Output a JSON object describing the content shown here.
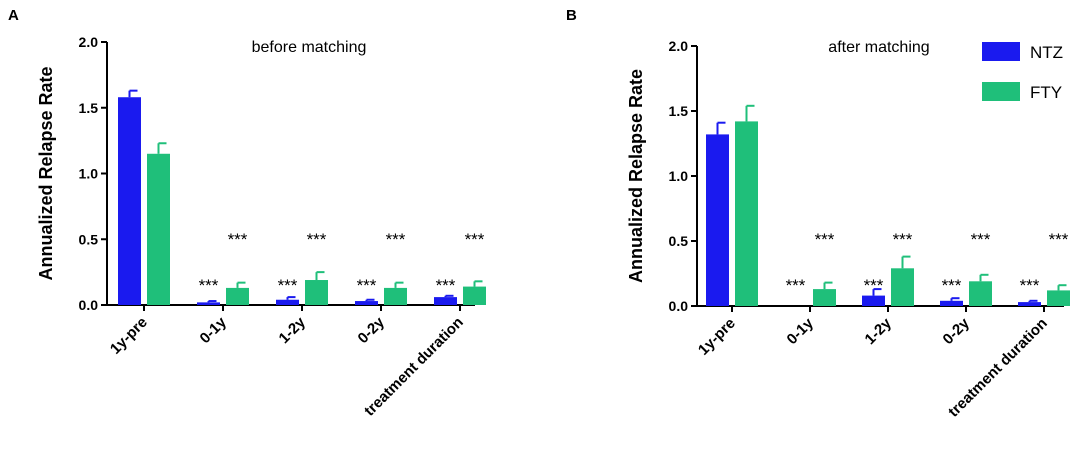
{
  "colors": {
    "ntz": "#1a1aef",
    "fty": "#1fbf7a",
    "axis": "#000000"
  },
  "legend": [
    {
      "name": "NTZ",
      "color": "#1a1aef"
    },
    {
      "name": "FTY",
      "color": "#1fbf7a"
    }
  ],
  "chart_data": [
    {
      "panel": "A",
      "type": "bar",
      "title": "before matching",
      "ylabel": "Annualized Relapse Rate",
      "xlabel": "",
      "ylim": [
        0,
        2.0
      ],
      "yticks": [
        "0.0",
        "0.5",
        "1.0",
        "1.5",
        "2.0"
      ],
      "categories": [
        "1y-pre",
        "0-1y",
        "1-2y",
        "0-2y",
        "treatment duration"
      ],
      "series": [
        {
          "name": "NTZ",
          "values": [
            1.58,
            0.02,
            0.04,
            0.03,
            0.06
          ],
          "errors": [
            0.05,
            0.01,
            0.02,
            0.01,
            0.01
          ]
        },
        {
          "name": "FTY",
          "values": [
            1.15,
            0.13,
            0.19,
            0.13,
            0.14
          ],
          "errors": [
            0.08,
            0.04,
            0.06,
            0.04,
            0.04
          ]
        }
      ],
      "annotations": {
        "NTZ": [
          "",
          "***",
          "***",
          "***",
          "***"
        ],
        "FTY": [
          "",
          "***",
          "***",
          "***",
          "***"
        ]
      }
    },
    {
      "panel": "B",
      "type": "bar",
      "title": "after matching",
      "ylabel": "Annualized Relapse Rate",
      "xlabel": "",
      "ylim": [
        0,
        2.0
      ],
      "yticks": [
        "0.0",
        "0.5",
        "1.0",
        "1.5",
        "2.0"
      ],
      "categories": [
        "1y-pre",
        "0-1y",
        "1-2y",
        "0-2y",
        "treatment duration"
      ],
      "series": [
        {
          "name": "NTZ",
          "values": [
            1.32,
            0.0,
            0.08,
            0.04,
            0.03
          ],
          "errors": [
            0.09,
            0.0,
            0.05,
            0.02,
            0.01
          ]
        },
        {
          "name": "FTY",
          "values": [
            1.42,
            0.13,
            0.29,
            0.19,
            0.12
          ],
          "errors": [
            0.12,
            0.05,
            0.09,
            0.05,
            0.04
          ]
        }
      ],
      "annotations": {
        "NTZ": [
          "",
          "***",
          "***",
          "***",
          "***"
        ],
        "FTY": [
          "",
          "***",
          "***",
          "***",
          "***"
        ]
      },
      "legend_position": "top-right"
    }
  ]
}
